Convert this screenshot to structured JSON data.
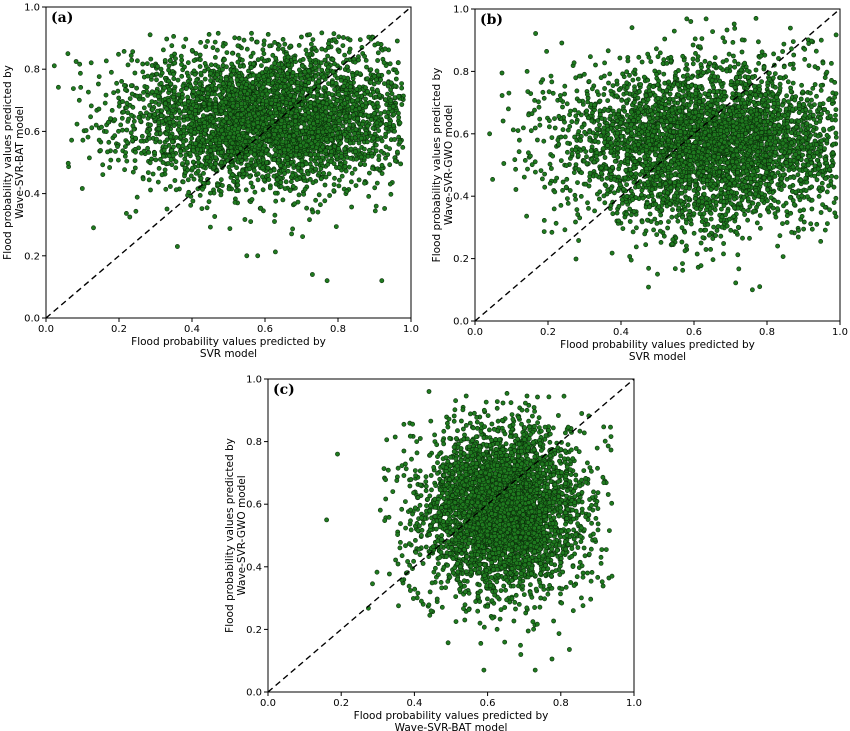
{
  "figure": {
    "panels": [
      {
        "tag": "(a)",
        "xlabel": [
          "Flood probability values predicted by",
          "SVR model"
        ],
        "ylabel": [
          "Flood probability values predicted by",
          "Wave-SVR-BAT model"
        ]
      },
      {
        "tag": "(b)",
        "xlabel": [
          "Flood probability values predicted by",
          "SVR model"
        ],
        "ylabel": [
          "Flood probability values predicted by",
          "Wave-SVR-GWO model"
        ]
      },
      {
        "tag": "(c)",
        "xlabel": [
          "Flood probability values predicted by",
          "Wave-SVR-BAT model"
        ],
        "ylabel": [
          "Flood probability values predicted by",
          "Wave-SVR-GWO model"
        ]
      }
    ],
    "colors": {
      "marker_fill": "#1f7a1f",
      "marker_edge": "#0b2e0b",
      "line": "#000000"
    }
  },
  "chart_data": [
    {
      "type": "scatter",
      "title": "(a)",
      "xlabel": "Flood probability values predicted by SVR model",
      "ylabel": "Flood probability values predicted by Wave-SVR-BAT model",
      "xlim": [
        0,
        1
      ],
      "ylim": [
        0,
        1
      ],
      "xticks": [
        "0.0",
        "0.2",
        "0.4",
        "0.6",
        "0.8",
        "1.0"
      ],
      "yticks": [
        "0.0",
        "0.2",
        "0.4",
        "0.6",
        "0.8",
        "1.0"
      ],
      "reference_line": "y = x (dashed)",
      "grid": false,
      "distribution": {
        "x_mean": 0.62,
        "x_sd": 0.2,
        "x_range": [
          0.0,
          0.98
        ],
        "y_mean": 0.64,
        "y_sd": 0.11,
        "y_range": [
          0.12,
          0.92
        ],
        "n": 4000
      },
      "notable_points": [
        [
          0.92,
          0.12
        ],
        [
          0.73,
          0.14
        ],
        [
          0.77,
          0.12
        ],
        [
          0.36,
          0.23
        ],
        [
          0.55,
          0.2
        ],
        [
          0.58,
          0.2
        ],
        [
          0.13,
          0.29
        ],
        [
          0.06,
          0.85
        ]
      ]
    },
    {
      "type": "scatter",
      "title": "(b)",
      "xlabel": "Flood probability values predicted by SVR model",
      "ylabel": "Flood probability values predicted by Wave-SVR-GWO model",
      "xlim": [
        0,
        1
      ],
      "ylim": [
        0,
        1
      ],
      "xticks": [
        "0.0",
        "0.2",
        "0.4",
        "0.6",
        "0.8",
        "1.0"
      ],
      "yticks": [
        "0.0",
        "0.2",
        "0.4",
        "0.6",
        "0.8",
        "1.0"
      ],
      "reference_line": "y = x (dashed)",
      "grid": false,
      "distribution": {
        "x_mean": 0.64,
        "x_sd": 0.2,
        "x_range": [
          0.03,
          0.99
        ],
        "y_mean": 0.57,
        "y_sd": 0.13,
        "y_range": [
          0.1,
          0.97
        ],
        "n": 4000
      },
      "notable_points": [
        [
          0.77,
          0.97
        ],
        [
          0.76,
          0.1
        ],
        [
          0.78,
          0.11
        ],
        [
          0.5,
          0.15
        ],
        [
          0.43,
          0.94
        ]
      ]
    },
    {
      "type": "scatter",
      "title": "(c)",
      "xlabel": "Flood probability values predicted by Wave-SVR-BAT model",
      "ylabel": "Flood probability values predicted by Wave-SVR-GWO model",
      "xlim": [
        0,
        1
      ],
      "ylim": [
        0,
        1
      ],
      "xticks": [
        "0.0",
        "0.2",
        "0.4",
        "0.6",
        "0.8",
        "1.0"
      ],
      "yticks": [
        "0.0",
        "0.2",
        "0.4",
        "0.6",
        "0.8",
        "1.0"
      ],
      "reference_line": "y = x (dashed)",
      "grid": false,
      "distribution": {
        "x_mean": 0.64,
        "x_sd": 0.11,
        "x_range": [
          0.16,
          0.94
        ],
        "y_mean": 0.58,
        "y_sd": 0.13,
        "y_range": [
          0.07,
          0.96
        ],
        "n": 4000
      },
      "notable_points": [
        [
          0.44,
          0.96
        ],
        [
          0.16,
          0.55
        ],
        [
          0.19,
          0.76
        ],
        [
          0.59,
          0.07
        ],
        [
          0.73,
          0.07
        ],
        [
          0.94,
          0.37
        ]
      ]
    }
  ]
}
